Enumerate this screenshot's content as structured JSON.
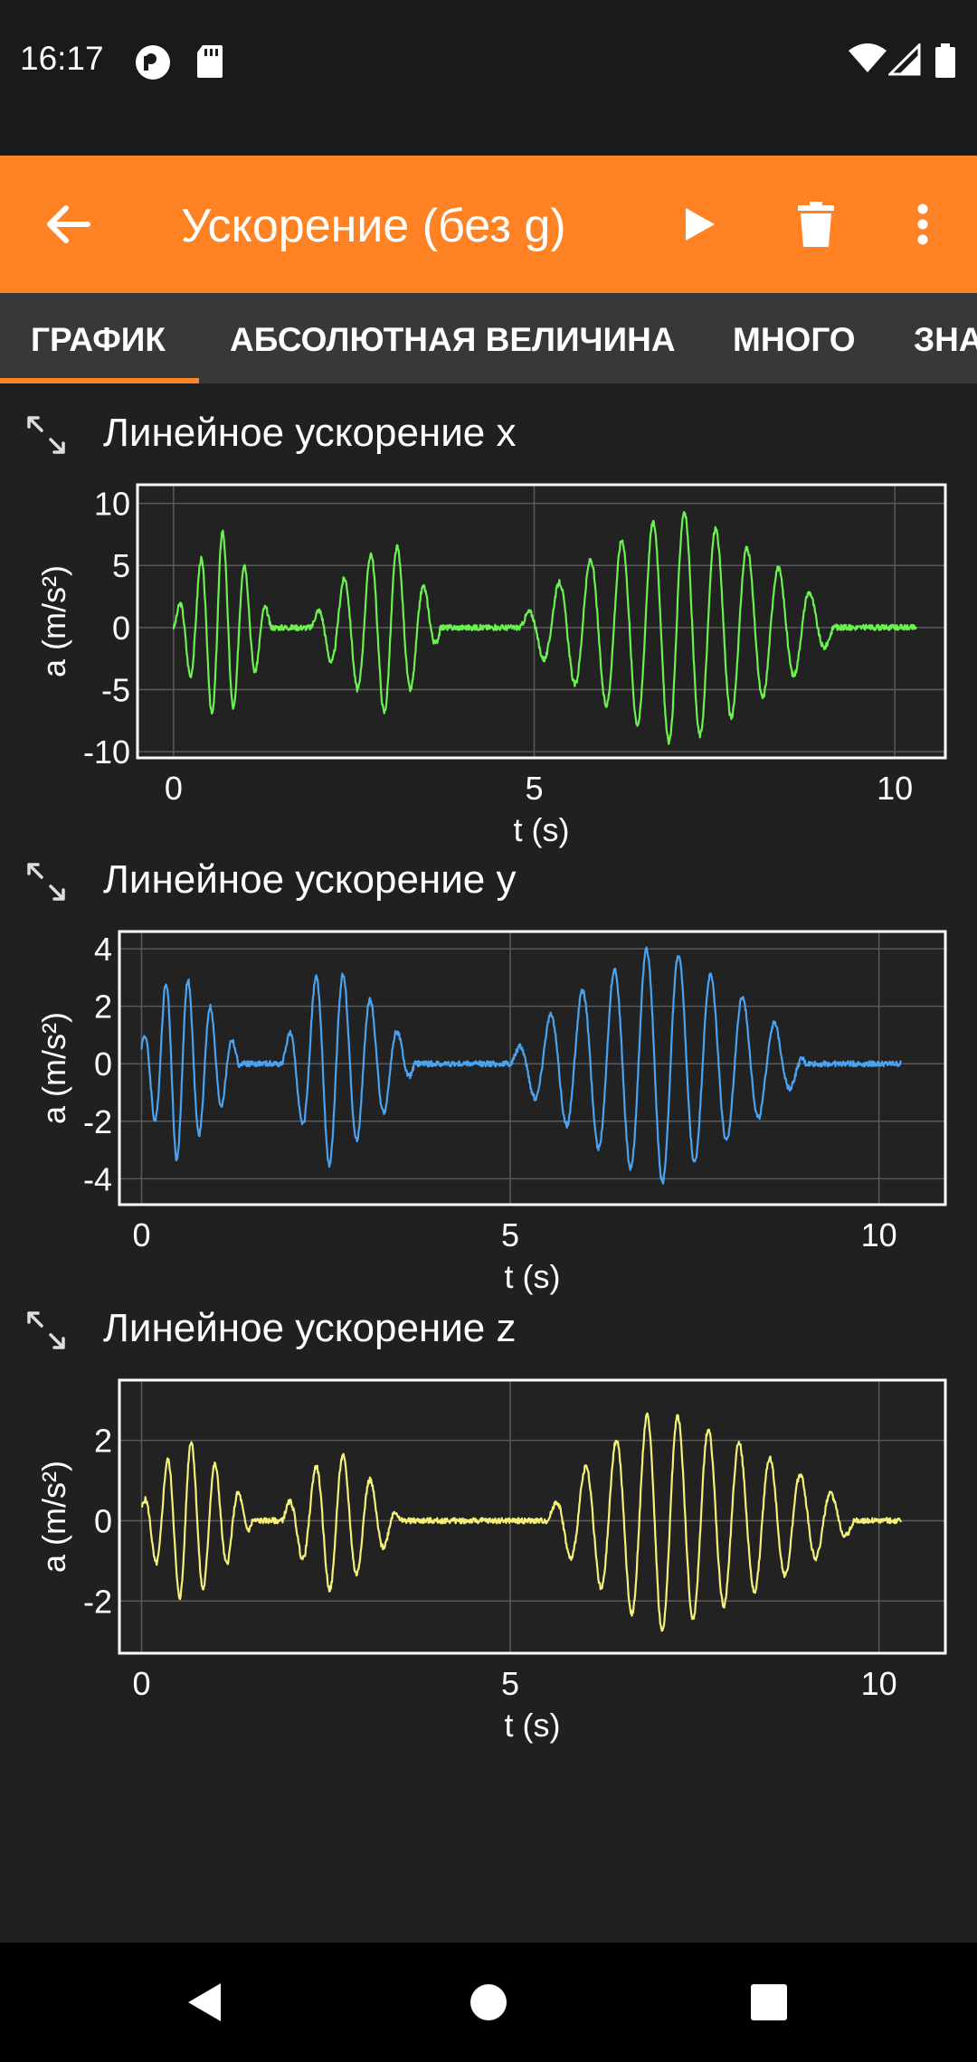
{
  "status_bar": {
    "time": "16:17",
    "icons": [
      "pocket-icon",
      "sd-card-icon",
      "wifi-icon",
      "signal-icon",
      "battery-icon"
    ]
  },
  "app_bar": {
    "back_icon": "arrow-left-icon",
    "title": "Ускорение (без g)",
    "actions": [
      "play-icon",
      "trash-icon",
      "more-vert-icon"
    ]
  },
  "tabs": [
    {
      "label": "ГРАФИК",
      "active": true
    },
    {
      "label": "АБСОЛЮТНАЯ ВЕЛИЧИНА",
      "active": false
    },
    {
      "label": "МНОГО",
      "active": false
    },
    {
      "label": "ЗНАЧ",
      "active": false
    }
  ],
  "colors": {
    "accent": "#ff8225",
    "x_series": "#6cf250",
    "y_series": "#4aa3f0",
    "z_series": "#f5f07a",
    "background": "#202020"
  },
  "chart_data": [
    {
      "type": "line",
      "title": "Линейное ускорение x",
      "xlabel": "t (s)",
      "ylabel": "a (m/s²)",
      "xlim": [
        -0.5,
        10.7
      ],
      "ylim": [
        -10.5,
        11.5
      ],
      "xticks": [
        0,
        5,
        10
      ],
      "yticks": [
        -10,
        -5,
        0,
        5,
        10
      ],
      "grid": true,
      "series": [
        {
          "color": "#6cf250",
          "bursts": [
            {
              "start": 0.0,
              "end": 1.35,
              "amp": 8.0,
              "freq": 3.3,
              "peak": 0.65
            },
            {
              "start": 1.9,
              "end": 3.7,
              "amp": 7.2,
              "freq": 2.7,
              "peak": 3.0
            },
            {
              "start": 4.8,
              "end": 9.2,
              "amp": 9.6,
              "freq": 2.3,
              "peak": 7.0
            }
          ],
          "t_end": 10.3
        }
      ]
    },
    {
      "type": "line",
      "title": "Линейное ускорение y",
      "xlabel": "t (s)",
      "ylabel": "a (m/s²)",
      "xlim": [
        -0.3,
        10.9
      ],
      "ylim": [
        -4.9,
        4.6
      ],
      "xticks": [
        0,
        5,
        10
      ],
      "yticks": [
        -4,
        -2,
        0,
        2,
        4
      ],
      "grid": true,
      "series": [
        {
          "color": "#4aa3f0",
          "bursts": [
            {
              "start": -0.05,
              "end": 1.35,
              "amp": 3.4,
              "freq": 3.3,
              "peak": 0.45
            },
            {
              "start": 1.9,
              "end": 3.7,
              "amp": 3.6,
              "freq": 2.7,
              "peak": 2.5
            },
            {
              "start": 5.0,
              "end": 9.0,
              "amp": 4.2,
              "freq": 2.3,
              "peak": 7.0
            }
          ],
          "t_end": 10.3
        }
      ]
    },
    {
      "type": "line",
      "title": "Линейное ускорение z",
      "xlabel": "t (s)",
      "ylabel": "a (m/s²)",
      "xlim": [
        -0.3,
        10.9
      ],
      "ylim": [
        -3.3,
        3.5
      ],
      "xticks": [
        0,
        5,
        10
      ],
      "yticks": [
        -2,
        0,
        2
      ],
      "grid": true,
      "series": [
        {
          "color": "#f5f07a",
          "bursts": [
            {
              "start": -0.05,
              "end": 1.5,
              "amp": 2.1,
              "freq": 3.1,
              "peak": 0.6
            },
            {
              "start": 1.9,
              "end": 3.5,
              "amp": 1.8,
              "freq": 2.7,
              "peak": 2.6
            },
            {
              "start": 5.5,
              "end": 9.7,
              "amp": 2.8,
              "freq": 2.4,
              "peak": 7.0
            }
          ],
          "t_end": 10.3
        }
      ]
    }
  ]
}
